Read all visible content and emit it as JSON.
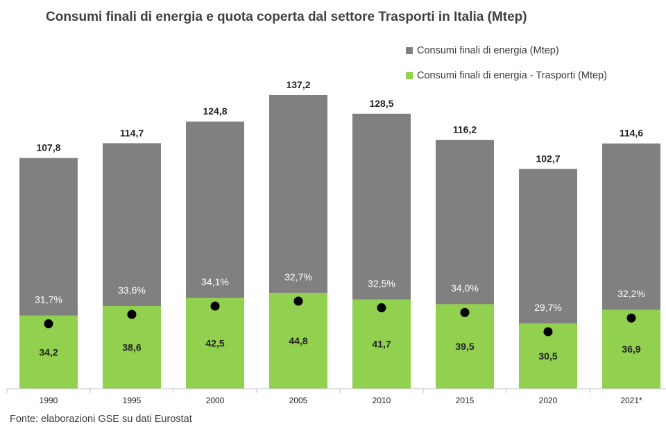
{
  "title": "Consumi finali di energia e quota coperta dal settore Trasporti in Italia (Mtep)",
  "source": "Fonte: elaborazioni GSE su dati Eurostat",
  "colors": {
    "total": "#808080",
    "transport": "#92d050",
    "marker": "#000000"
  },
  "chart_data": {
    "type": "bar",
    "categories": [
      "1990",
      "1995",
      "2000",
      "2005",
      "2010",
      "2015",
      "2020",
      "2021*"
    ],
    "series": [
      {
        "name": "Consumi finali di energia (Mtep)",
        "values": [
          107.8,
          114.7,
          124.8,
          137.2,
          128.5,
          116.2,
          102.7,
          114.6
        ],
        "labels": [
          "107,8",
          "114,7",
          "124,8",
          "137,2",
          "128,5",
          "116,2",
          "102,7",
          "114,6"
        ]
      },
      {
        "name": "Consumi finali di energia - Trasporti (Mtep)",
        "values": [
          34.2,
          38.6,
          42.5,
          44.8,
          41.7,
          39.5,
          30.5,
          36.9
        ],
        "labels": [
          "34,2",
          "38,6",
          "42,5",
          "44,8",
          "41,7",
          "39,5",
          "30,5",
          "36,9"
        ]
      }
    ],
    "share_percent": {
      "values": [
        31.7,
        33.6,
        34.1,
        32.7,
        32.5,
        34.0,
        29.7,
        32.2
      ],
      "labels": [
        "31,7%",
        "33,6%",
        "34,1%",
        "32,7%",
        "32,5%",
        "34,0%",
        "29,7%",
        "32,2%"
      ]
    },
    "ylim": [
      0,
      137.2
    ],
    "grid": false,
    "legend_position": "top-right"
  }
}
